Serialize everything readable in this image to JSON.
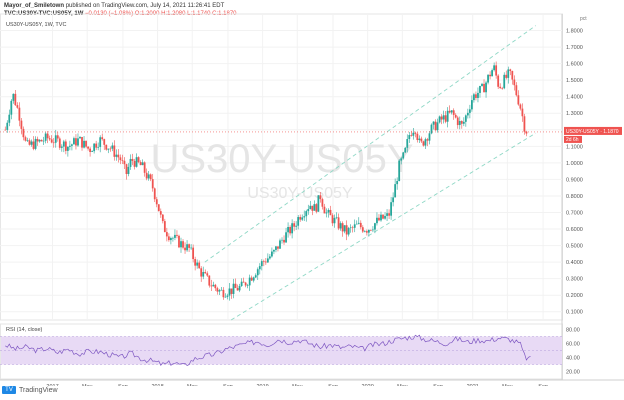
{
  "header": {
    "author": "Mayor_of_Smiletown",
    "published": "published on TradingView.com, July 14, 2021 11:26:41 EDT",
    "symbol": "TVC:US30Y-TVC:US05Y, 1W",
    "change": "−0.0130 (−1.08%)",
    "ohlc": "O:1.2000 H:1.2080 L:1.1740 C:1.1870"
  },
  "chart_data": [
    {
      "type": "candlestick",
      "title": "US30Y-US05Y, 1W, TVC",
      "watermark": "US30Y-US05Y",
      "watermark_sub": "US30Y-US05Y",
      "unit": "pct",
      "ylim": [
        0.05,
        1.9
      ],
      "y_ticks": [
        "1.8000",
        "1.7000",
        "1.6000",
        "1.5000",
        "1.4000",
        "1.3000",
        "1.2000",
        "1.1000",
        "1.0000",
        "0.9000",
        "0.8000",
        "0.7000",
        "0.6000",
        "0.5000",
        "0.4000",
        "0.3000",
        "0.2000",
        "0.1000"
      ],
      "x_ticks": [
        "2017",
        "May",
        "Sep",
        "2018",
        "May",
        "Sep",
        "2019",
        "May",
        "Sep",
        "2020",
        "May",
        "Sep",
        "2021",
        "May",
        "Sep"
      ],
      "last_price_label": "US30Y-US05Y · 1.1870",
      "last_price": 1.187,
      "countdown_label": "2d 6h",
      "channel_upper": [
        [
          2018.45,
          0.4
        ],
        [
          2021.6,
          1.83
        ]
      ],
      "channel_lower": [
        [
          2018.7,
          0.05
        ],
        [
          2021.6,
          1.18
        ]
      ],
      "colors": {
        "up": "#26a69a",
        "down": "#ef5350",
        "channel": "#8fd8c6"
      },
      "price_path": [
        [
          2016.55,
          1.2
        ],
        [
          2016.62,
          1.42
        ],
        [
          2016.68,
          1.3
        ],
        [
          2016.75,
          1.1
        ],
        [
          2016.85,
          1.12
        ],
        [
          2016.95,
          1.15
        ],
        [
          2017.05,
          1.13
        ],
        [
          2017.15,
          1.1
        ],
        [
          2017.25,
          1.14
        ],
        [
          2017.35,
          1.08
        ],
        [
          2017.45,
          1.14
        ],
        [
          2017.55,
          1.09
        ],
        [
          2017.65,
          1.02
        ],
        [
          2017.7,
          0.93
        ],
        [
          2017.75,
          1.02
        ],
        [
          2017.85,
          0.98
        ],
        [
          2017.95,
          0.86
        ],
        [
          2018.0,
          0.75
        ],
        [
          2018.05,
          0.62
        ],
        [
          2018.1,
          0.57
        ],
        [
          2018.2,
          0.52
        ],
        [
          2018.3,
          0.48
        ],
        [
          2018.4,
          0.35
        ],
        [
          2018.5,
          0.27
        ],
        [
          2018.6,
          0.22
        ],
        [
          2018.7,
          0.23
        ],
        [
          2018.8,
          0.25
        ],
        [
          2018.9,
          0.32
        ],
        [
          2019.0,
          0.4
        ],
        [
          2019.1,
          0.45
        ],
        [
          2019.2,
          0.55
        ],
        [
          2019.3,
          0.62
        ],
        [
          2019.35,
          0.68
        ],
        [
          2019.45,
          0.75
        ],
        [
          2019.5,
          0.72
        ],
        [
          2019.55,
          0.8
        ],
        [
          2019.6,
          0.7
        ],
        [
          2019.7,
          0.64
        ],
        [
          2019.8,
          0.58
        ],
        [
          2019.9,
          0.62
        ],
        [
          2020.0,
          0.6
        ],
        [
          2020.1,
          0.65
        ],
        [
          2020.2,
          0.68
        ],
        [
          2020.25,
          0.82
        ],
        [
          2020.3,
          0.98
        ],
        [
          2020.35,
          1.05
        ],
        [
          2020.4,
          1.18
        ],
        [
          2020.45,
          1.22
        ],
        [
          2020.5,
          1.1
        ],
        [
          2020.6,
          1.2
        ],
        [
          2020.7,
          1.26
        ],
        [
          2020.8,
          1.3
        ],
        [
          2020.9,
          1.22
        ],
        [
          2021.0,
          1.4
        ],
        [
          2021.1,
          1.45
        ],
        [
          2021.15,
          1.52
        ],
        [
          2021.2,
          1.58
        ],
        [
          2021.25,
          1.46
        ],
        [
          2021.3,
          1.5
        ],
        [
          2021.35,
          1.54
        ],
        [
          2021.4,
          1.45
        ],
        [
          2021.45,
          1.35
        ],
        [
          2021.5,
          1.2
        ],
        [
          2021.53,
          1.187
        ]
      ]
    },
    {
      "type": "line",
      "title": "RSI (14, close)",
      "ylim": [
        15,
        85
      ],
      "y_ticks": [
        "80.00",
        "60.00",
        "40.00",
        "20.00"
      ],
      "band": [
        30,
        70
      ],
      "colors": {
        "line": "#7e57c2",
        "band": "#e8daf5"
      },
      "x": [
        2016.55,
        2016.65,
        2016.75,
        2016.85,
        2016.95,
        2017.05,
        2017.15,
        2017.25,
        2017.35,
        2017.45,
        2017.55,
        2017.65,
        2017.75,
        2017.85,
        2017.95,
        2018.05,
        2018.15,
        2018.25,
        2018.35,
        2018.45,
        2018.55,
        2018.65,
        2018.75,
        2018.85,
        2018.95,
        2019.05,
        2019.15,
        2019.25,
        2019.35,
        2019.45,
        2019.55,
        2019.65,
        2019.75,
        2019.85,
        2019.95,
        2020.05,
        2020.15,
        2020.25,
        2020.35,
        2020.45,
        2020.55,
        2020.65,
        2020.75,
        2020.85,
        2020.95,
        2021.05,
        2021.15,
        2021.25,
        2021.35,
        2021.45,
        2021.5,
        2021.55
      ],
      "y": [
        58,
        52,
        55,
        50,
        53,
        47,
        52,
        45,
        49,
        48,
        44,
        40,
        46,
        38,
        35,
        30,
        33,
        28,
        38,
        42,
        45,
        52,
        56,
        60,
        63,
        58,
        66,
        62,
        65,
        60,
        55,
        58,
        54,
        56,
        52,
        58,
        60,
        65,
        68,
        70,
        66,
        63,
        60,
        67,
        62,
        65,
        64,
        68,
        66,
        60,
        40,
        38
      ]
    }
  ],
  "footer": {
    "brand": "TradingView"
  }
}
